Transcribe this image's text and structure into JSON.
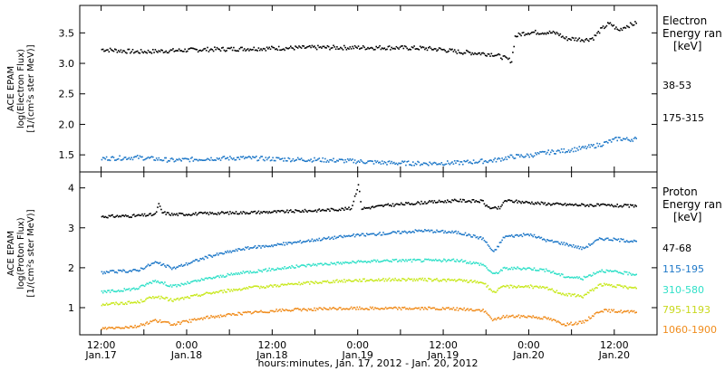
{
  "chart_data": [
    {
      "type": "scatter",
      "panel": "electron",
      "ylabel_lines": [
        "ACE EPAM",
        "log(Electron Flux)",
        "[1/(cm²s ster MeV)]"
      ],
      "ylim": [
        1.22,
        3.95
      ],
      "yticks": [
        1.5,
        2.0,
        2.5,
        3.0,
        3.5
      ],
      "ytick_labels": [
        "1.5",
        "2.0",
        "2.5",
        "3.0",
        "3.5"
      ],
      "legend_title_lines": [
        "Electron",
        "Energy ran",
        "[keV]"
      ],
      "series": [
        {
          "name": "38-53",
          "color": "#000000",
          "points": [
            [
              0,
              3.24
            ],
            [
              10,
              3.2
            ],
            [
              20,
              3.22
            ],
            [
              30,
              3.24
            ],
            [
              40,
              3.25
            ],
            [
              50,
              3.26
            ],
            [
              60,
              3.27
            ],
            [
              70,
              3.27
            ],
            [
              80,
              3.27
            ],
            [
              90,
              3.26
            ],
            [
              95,
              3.24
            ],
            [
              100,
              3.2
            ],
            [
              105,
              3.18
            ],
            [
              110,
              3.16
            ],
            [
              113,
              3.1
            ],
            [
              115,
              3.05
            ],
            [
              116,
              3.45
            ],
            [
              118,
              3.5
            ],
            [
              120,
              3.52
            ],
            [
              125,
              3.52
            ],
            [
              128,
              3.5
            ],
            [
              130,
              3.42
            ],
            [
              136,
              3.4
            ],
            [
              138,
              3.43
            ],
            [
              140,
              3.56
            ],
            [
              142,
              3.65
            ],
            [
              143,
              3.65
            ],
            [
              145,
              3.55
            ],
            [
              147,
              3.62
            ],
            [
              150,
              3.67
            ]
          ]
        },
        {
          "name": "175-315",
          "color": "#1e78c8",
          "points": [
            [
              0,
              1.45
            ],
            [
              10,
              1.47
            ],
            [
              20,
              1.42
            ],
            [
              30,
              1.45
            ],
            [
              40,
              1.46
            ],
            [
              50,
              1.44
            ],
            [
              60,
              1.43
            ],
            [
              70,
              1.41
            ],
            [
              80,
              1.38
            ],
            [
              90,
              1.37
            ],
            [
              100,
              1.38
            ],
            [
              110,
              1.42
            ],
            [
              115,
              1.48
            ],
            [
              120,
              1.5
            ],
            [
              125,
              1.55
            ],
            [
              130,
              1.58
            ],
            [
              135,
              1.62
            ],
            [
              140,
              1.68
            ],
            [
              145,
              1.78
            ],
            [
              148,
              1.76
            ],
            [
              150,
              1.78
            ]
          ]
        }
      ]
    },
    {
      "type": "scatter",
      "panel": "proton",
      "ylabel_lines": [
        "ACE EPAM",
        "log(Proton Flux)",
        "[1/(cm²s ster MeV)]"
      ],
      "ylim": [
        0.32,
        4.4
      ],
      "yticks": [
        1,
        2,
        3,
        4
      ],
      "ytick_labels": [
        "1",
        "2",
        "3",
        "4"
      ],
      "legend_title_lines": [
        "Proton",
        "Energy ran",
        "[keV]"
      ],
      "xlabel": "hours:minutes, Jan. 17, 2012 - Jan. 20, 2012",
      "xlim": [
        -6,
        156
      ],
      "xticks": [
        0,
        12,
        24,
        36,
        48,
        60,
        72,
        84,
        96,
        108,
        120,
        132,
        144
      ],
      "xtick_labels": [
        [
          "12:00",
          "Jan.17"
        ],
        [
          "0:00",
          "Jan.18"
        ],
        [
          "12:00",
          "Jan.18"
        ],
        [
          "0:00",
          "Jan.19"
        ],
        [
          "12:00",
          "Jan.19"
        ],
        [
          "0:00",
          "Jan.20"
        ],
        [
          "12:00",
          "Jan.20"
        ]
      ],
      "xtick_label_at": [
        0,
        24,
        48,
        72,
        96,
        120,
        144
      ],
      "series": [
        {
          "name": "47-68",
          "color": "#000000",
          "points": [
            [
              0,
              3.3
            ],
            [
              10,
              3.32
            ],
            [
              15,
              3.35
            ],
            [
              16,
              3.6
            ],
            [
              17,
              3.4
            ],
            [
              20,
              3.35
            ],
            [
              30,
              3.38
            ],
            [
              40,
              3.4
            ],
            [
              50,
              3.42
            ],
            [
              60,
              3.45
            ],
            [
              70,
              3.5
            ],
            [
              72,
              4.1
            ],
            [
              73,
              3.5
            ],
            [
              80,
              3.58
            ],
            [
              90,
              3.65
            ],
            [
              100,
              3.7
            ],
            [
              107,
              3.68
            ],
            [
              108,
              3.55
            ],
            [
              110,
              3.5
            ],
            [
              112,
              3.52
            ],
            [
              113,
              3.7
            ],
            [
              120,
              3.65
            ],
            [
              125,
              3.62
            ],
            [
              130,
              3.6
            ],
            [
              140,
              3.58
            ],
            [
              150,
              3.56
            ]
          ]
        },
        {
          "name": "115-195",
          "color": "#1e78c8",
          "points": [
            [
              0,
              1.9
            ],
            [
              10,
              1.95
            ],
            [
              15,
              2.15
            ],
            [
              20,
              2.0
            ],
            [
              30,
              2.3
            ],
            [
              40,
              2.5
            ],
            [
              50,
              2.6
            ],
            [
              60,
              2.72
            ],
            [
              70,
              2.82
            ],
            [
              80,
              2.88
            ],
            [
              90,
              2.95
            ],
            [
              100,
              2.9
            ],
            [
              107,
              2.75
            ],
            [
              110,
              2.4
            ],
            [
              113,
              2.8
            ],
            [
              120,
              2.85
            ],
            [
              125,
              2.7
            ],
            [
              130,
              2.62
            ],
            [
              135,
              2.5
            ],
            [
              140,
              2.75
            ],
            [
              150,
              2.68
            ]
          ]
        },
        {
          "name": "310-580",
          "color": "#30e0c8",
          "points": [
            [
              0,
              1.4
            ],
            [
              10,
              1.5
            ],
            [
              15,
              1.7
            ],
            [
              20,
              1.55
            ],
            [
              30,
              1.75
            ],
            [
              40,
              1.9
            ],
            [
              50,
              2.0
            ],
            [
              60,
              2.1
            ],
            [
              70,
              2.15
            ],
            [
              80,
              2.2
            ],
            [
              90,
              2.2
            ],
            [
              100,
              2.2
            ],
            [
              107,
              2.1
            ],
            [
              110,
              1.85
            ],
            [
              113,
              2.0
            ],
            [
              120,
              2.0
            ],
            [
              125,
              1.95
            ],
            [
              130,
              1.8
            ],
            [
              135,
              1.75
            ],
            [
              140,
              1.95
            ],
            [
              150,
              1.85
            ]
          ]
        },
        {
          "name": "795-1193",
          "color": "#c8e81c",
          "points": [
            [
              0,
              1.1
            ],
            [
              10,
              1.15
            ],
            [
              15,
              1.3
            ],
            [
              20,
              1.2
            ],
            [
              30,
              1.38
            ],
            [
              40,
              1.5
            ],
            [
              50,
              1.58
            ],
            [
              60,
              1.65
            ],
            [
              70,
              1.7
            ],
            [
              80,
              1.72
            ],
            [
              90,
              1.72
            ],
            [
              100,
              1.7
            ],
            [
              107,
              1.65
            ],
            [
              110,
              1.4
            ],
            [
              113,
              1.55
            ],
            [
              120,
              1.55
            ],
            [
              125,
              1.5
            ],
            [
              130,
              1.35
            ],
            [
              135,
              1.3
            ],
            [
              140,
              1.6
            ],
            [
              150,
              1.5
            ]
          ]
        },
        {
          "name": "1060-1900",
          "color": "#f08c1c",
          "points": [
            [
              0,
              0.5
            ],
            [
              10,
              0.55
            ],
            [
              15,
              0.7
            ],
            [
              20,
              0.6
            ],
            [
              30,
              0.78
            ],
            [
              40,
              0.88
            ],
            [
              50,
              0.95
            ],
            [
              60,
              0.98
            ],
            [
              70,
              1.0
            ],
            [
              80,
              1.0
            ],
            [
              90,
              1.0
            ],
            [
              100,
              0.98
            ],
            [
              107,
              0.95
            ],
            [
              110,
              0.7
            ],
            [
              113,
              0.8
            ],
            [
              120,
              0.8
            ],
            [
              125,
              0.75
            ],
            [
              130,
              0.6
            ],
            [
              135,
              0.65
            ],
            [
              140,
              0.95
            ],
            [
              150,
              0.9
            ]
          ]
        }
      ]
    }
  ]
}
